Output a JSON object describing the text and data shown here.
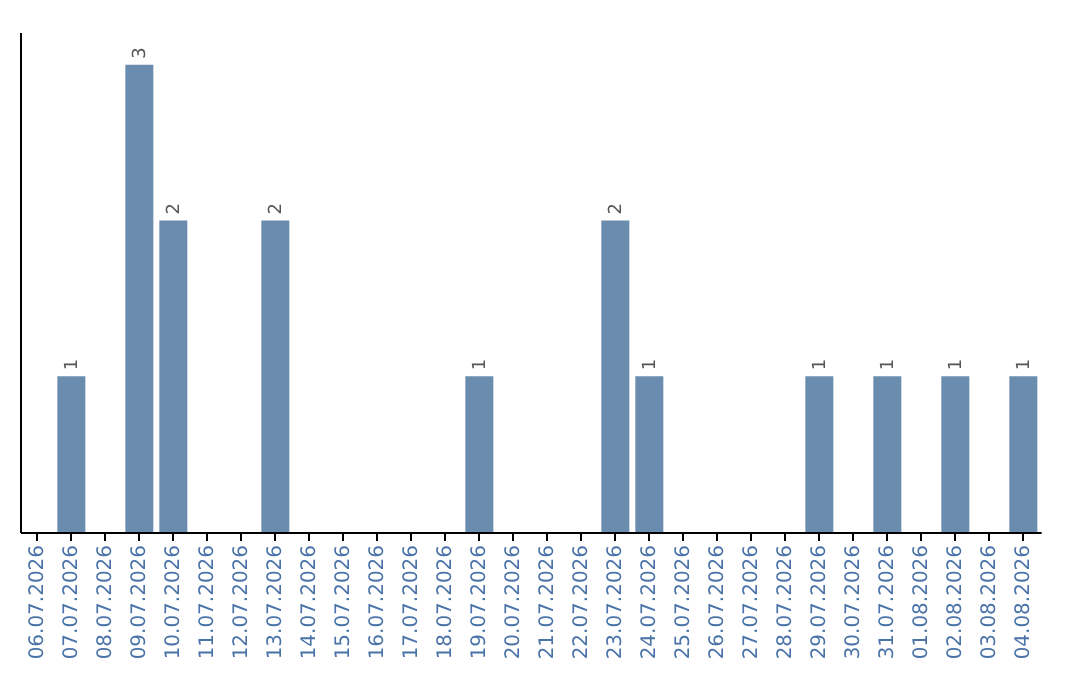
{
  "chart_data": {
    "type": "bar",
    "categories": [
      "06.07.2026",
      "07.07.2026",
      "08.07.2026",
      "09.07.2026",
      "10.07.2026",
      "11.07.2026",
      "12.07.2026",
      "13.07.2026",
      "14.07.2026",
      "15.07.2026",
      "16.07.2026",
      "17.07.2026",
      "18.07.2026",
      "19.07.2026",
      "20.07.2026",
      "21.07.2026",
      "22.07.2026",
      "23.07.2026",
      "24.07.2026",
      "25.07.2026",
      "26.07.2026",
      "27.07.2026",
      "28.07.2026",
      "29.07.2026",
      "30.07.2026",
      "31.07.2026",
      "01.08.2026",
      "02.08.2026",
      "03.08.2026",
      "04.08.2026"
    ],
    "values": [
      0,
      1,
      0,
      3,
      2,
      0,
      0,
      2,
      0,
      0,
      0,
      0,
      0,
      1,
      0,
      0,
      0,
      2,
      1,
      0,
      0,
      0,
      0,
      1,
      0,
      1,
      0,
      1,
      0,
      1
    ],
    "value_labels": [
      null,
      "1",
      null,
      "3",
      "2",
      null,
      null,
      "2",
      null,
      null,
      null,
      null,
      null,
      "1",
      null,
      null,
      null,
      "2",
      "1",
      null,
      null,
      null,
      null,
      "1",
      null,
      "1",
      null,
      "1",
      null,
      "1"
    ],
    "color": "#6a8caf",
    "tick_labels": "x",
    "grid": false
  }
}
